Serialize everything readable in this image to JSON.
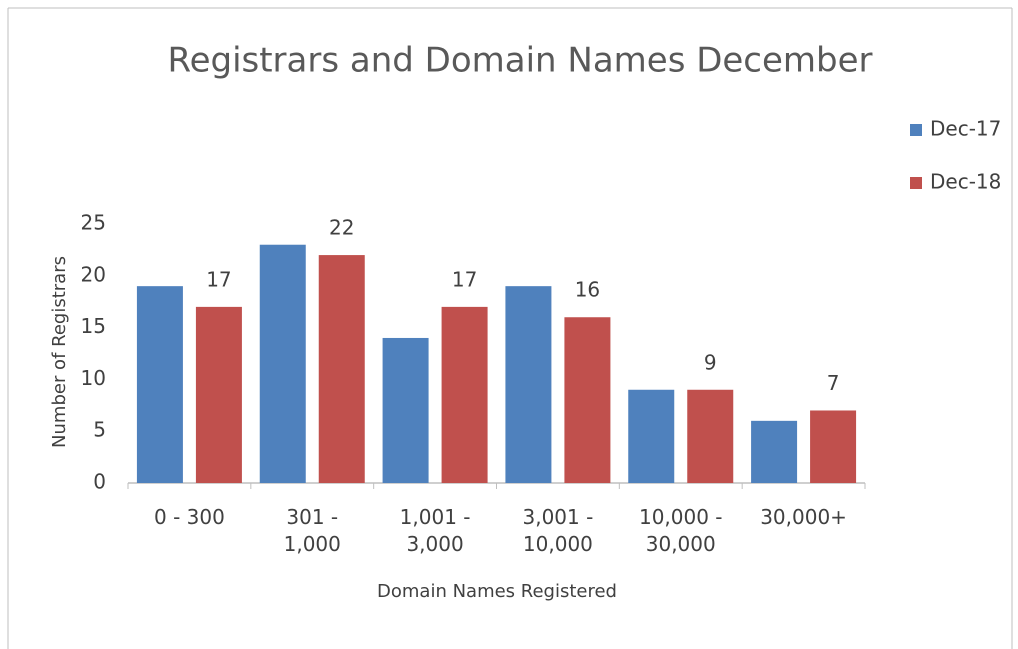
{
  "chart_data": {
    "type": "bar",
    "title": "Registrars and Domain Names December",
    "x_label": "Domain Names Registered",
    "y_label": "Number of Registrars",
    "categories": [
      "0 - 300",
      "301 - 1,000",
      "1,001 - 3,000",
      "3,001 - 10,000",
      "10,000 - 30,000",
      "30,000+"
    ],
    "series": [
      {
        "name": "Dec-17",
        "color": "#4f81bd",
        "values": [
          19,
          23,
          14,
          19,
          9,
          6
        ],
        "data_labels": false
      },
      {
        "name": "Dec-18",
        "color": "#c0504d",
        "values": [
          17,
          22,
          17,
          16,
          9,
          7
        ],
        "data_labels": true
      }
    ],
    "ylim": [
      0,
      25
    ],
    "yticks": [
      0,
      5,
      10,
      15,
      20,
      25
    ],
    "grid": false,
    "legend": "right"
  }
}
